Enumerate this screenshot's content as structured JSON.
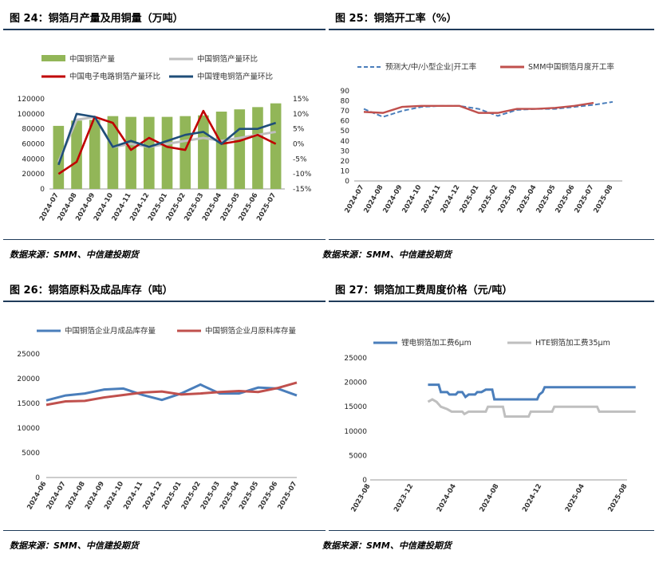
{
  "panels": [
    {
      "title": "图 24：铜箔月产量及用铜量（万吨）",
      "source": "数据来源：SMM、中信建投期货"
    },
    {
      "title": "图 25：铜箔开工率（%）",
      "source": "数据来源：SMM、中信建投期货"
    },
    {
      "title": "图 26：铜箔原料及成品库存（吨）",
      "source": "数据来源：SMM、中信建投期货"
    },
    {
      "title": "图 27：铜箔加工费周度价格（元/吨）",
      "source": "数据来源：SMM、中信建投期货"
    }
  ],
  "colors": {
    "green": "#92b658",
    "gray": "#bfbfbf",
    "red": "#c00000",
    "navy": "#1f4e79",
    "blue": "#4a7ebb",
    "dashblue": "#4a7ebb",
    "brick": "#c0504d",
    "rule": "#1f3b5a"
  },
  "chart_data": [
    {
      "type": "bar",
      "categories": [
        "2024-07",
        "2024-08",
        "2024-09",
        "2024-10",
        "2024-11",
        "2024-12",
        "2025-01",
        "2025-02",
        "2025-03",
        "2025-04",
        "2025-05",
        "2025-06",
        "2025-07"
      ],
      "ylim": [
        0,
        120000
      ],
      "yticks": [
        "0",
        "20000",
        "40000",
        "60000",
        "80000",
        "100000",
        "120000"
      ],
      "y2lim": [
        -15,
        15
      ],
      "y2ticks": [
        "-15%",
        "-10%",
        "-5%",
        "0%",
        "5%",
        "10%",
        "15%"
      ],
      "legend": [
        "中国铜箔产量",
        "中国铜箔产量环比",
        "中国电子电路铜箔产量环比",
        "中国锂电铜箔产量环比"
      ],
      "series": [
        {
          "name": "中国铜箔产量",
          "axis": "left",
          "kind": "bar",
          "values": [
            84000,
            91000,
            92000,
            97000,
            96000,
            96000,
            96000,
            97000,
            98000,
            103000,
            106000,
            109000,
            114000
          ]
        },
        {
          "name": "中国铜箔产量环比",
          "axis": "right",
          "kind": "line",
          "values": [
            -6,
            8,
            9,
            -1,
            0,
            -1,
            0,
            1,
            2,
            1,
            2,
            3,
            4
          ]
        },
        {
          "name": "中国电子电路铜箔产量环比",
          "axis": "right",
          "kind": "line",
          "values": [
            -10,
            -6,
            9,
            7,
            -2,
            2,
            -1,
            -2,
            11,
            0,
            1,
            3,
            0
          ]
        },
        {
          "name": "中国锂电铜箔产量环比",
          "axis": "right",
          "kind": "line",
          "values": [
            -7,
            10,
            9,
            -1,
            1,
            -1,
            1,
            3,
            4,
            0,
            5,
            5,
            7
          ]
        }
      ]
    },
    {
      "type": "line",
      "categories": [
        "2024-07",
        "2024-08",
        "2024-09",
        "2024-10",
        "2024-11",
        "2024-12",
        "2025-01",
        "2025-02",
        "2025-03",
        "2025-04",
        "2025-05",
        "2025-06",
        "2025-07",
        "2025-08"
      ],
      "ylim": [
        0,
        90
      ],
      "yticks": [
        "0",
        "10",
        "20",
        "30",
        "40",
        "50",
        "60",
        "70",
        "80",
        "90"
      ],
      "legend": [
        "预测大/中/小型企业|开工率",
        "SMM中国铜箔月度开工率"
      ],
      "series": [
        {
          "name": "预测大/中/小型企业|开工率",
          "values": [
            72,
            64,
            70,
            74,
            75,
            75,
            72,
            65,
            71,
            72,
            72,
            74,
            76,
            79
          ]
        },
        {
          "name": "SMM中国铜箔月度开工率",
          "values": [
            69,
            68,
            74,
            75,
            75,
            75,
            68,
            68,
            72,
            72,
            73,
            75,
            78,
            null
          ]
        }
      ]
    },
    {
      "type": "line",
      "categories": [
        "2024-06",
        "2024-07",
        "2024-08",
        "2024-09",
        "2024-10",
        "2024-11",
        "2024-12",
        "2025-01",
        "2025-02",
        "2025-03",
        "2025-04",
        "2025-05",
        "2025-06",
        "2025-07"
      ],
      "ylim": [
        0,
        25000
      ],
      "yticks": [
        "0",
        "5000",
        "10000",
        "15000",
        "20000",
        "25000"
      ],
      "legend": [
        "中国铜箔企业月成品库存量",
        "中国铜箔企业月原料库存量"
      ],
      "series": [
        {
          "name": "中国铜箔企业月成品库存量",
          "values": [
            15600,
            16600,
            17000,
            17800,
            18000,
            16700,
            15700,
            17000,
            18800,
            17000,
            17000,
            18200,
            18000,
            16600
          ]
        },
        {
          "name": "中国铜箔企业月原料库存量",
          "values": [
            14700,
            15400,
            15500,
            16200,
            16700,
            17200,
            17400,
            16800,
            17000,
            17300,
            17500,
            17300,
            18100,
            19200
          ]
        }
      ]
    },
    {
      "type": "line",
      "categories": [
        "2023-08",
        "2023-12",
        "2024-04",
        "2024-08",
        "2024-12",
        "2025-04",
        "2025-08"
      ],
      "ylim": [
        0,
        25000
      ],
      "yticks": [
        "0",
        "5000",
        "10000",
        "15000",
        "20000",
        "25000"
      ],
      "legend": [
        "锂电铜箔加工费6μm",
        "HTE铜箔加工费35μm"
      ],
      "series": [
        {
          "name": "锂电铜箔加工费6μm",
          "points": [
            [
              2.7,
              19500
            ],
            [
              3.2,
              19500
            ],
            [
              3.3,
              18000
            ],
            [
              3.6,
              18000
            ],
            [
              3.7,
              17500
            ],
            [
              4.0,
              17500
            ],
            [
              4.1,
              18000
            ],
            [
              4.3,
              18000
            ],
            [
              4.45,
              17000
            ],
            [
              4.6,
              17500
            ],
            [
              4.9,
              17500
            ],
            [
              5.0,
              18000
            ],
            [
              5.2,
              18000
            ],
            [
              5.4,
              18500
            ],
            [
              5.7,
              18500
            ],
            [
              5.8,
              16500
            ],
            [
              6.0,
              16500
            ],
            [
              6.6,
              16500
            ],
            [
              7.8,
              16500
            ],
            [
              7.9,
              17500
            ],
            [
              8.05,
              18000
            ],
            [
              8.15,
              19000
            ],
            [
              9.0,
              19000
            ],
            [
              12.4,
              19000
            ]
          ]
        },
        {
          "name": "HTE铜箔加工费35μm",
          "points": [
            [
              2.7,
              16000
            ],
            [
              2.9,
              16500
            ],
            [
              3.1,
              16000
            ],
            [
              3.3,
              15000
            ],
            [
              3.6,
              14500
            ],
            [
              3.8,
              14000
            ],
            [
              4.3,
              14000
            ],
            [
              4.4,
              13500
            ],
            [
              4.6,
              14000
            ],
            [
              5.0,
              14000
            ],
            [
              5.4,
              14000
            ],
            [
              5.5,
              15000
            ],
            [
              6.2,
              15000
            ],
            [
              6.3,
              13000
            ],
            [
              7.4,
              13000
            ],
            [
              7.5,
              14000
            ],
            [
              8.5,
              14000
            ],
            [
              8.6,
              15000
            ],
            [
              10.6,
              15000
            ],
            [
              10.7,
              14000
            ],
            [
              11.0,
              14000
            ],
            [
              12.4,
              14000
            ]
          ]
        }
      ]
    }
  ]
}
